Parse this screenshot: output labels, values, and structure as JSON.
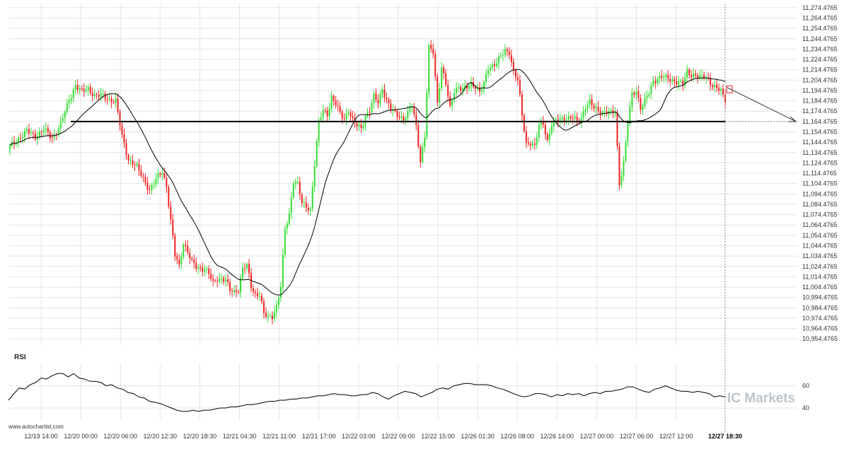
{
  "watermark": "www.autochartist.com",
  "brand": "IC Markets",
  "chart_data": [
    {
      "type": "candlestick",
      "ylim": [
        10948.4765,
        11278.4765
      ],
      "y_ticks": [
        10954.4765,
        10964.4765,
        10974.4765,
        10984.4765,
        10994.4765,
        11004.4765,
        11014.4765,
        11024.4765,
        11034.4765,
        11044.4765,
        11054.4765,
        11064.4765,
        11074.4765,
        11084.4765,
        11094.4765,
        11104.4765,
        11114.4765,
        11124.4765,
        11134.4765,
        11144.4765,
        11154.4765,
        11164.4765,
        11174.4765,
        11184.4765,
        11194.4765,
        11204.4765,
        11214.4765,
        11224.4765,
        11234.4765,
        11244.4765,
        11254.4765,
        11264.4765,
        11274.4765
      ],
      "y_tick_labels": [
        "10,954.4765",
        "10,964.4765",
        "10,974.4765",
        "10,984.4765",
        "10,994.4765",
        "11,004.4765",
        "11,014.4765",
        "11,024.4765",
        "11,034.4765",
        "11,044.4765",
        "11,054.4765",
        "11,064.4765",
        "11,074.4765",
        "11,084.4765",
        "11,094.4765",
        "11,104.4765",
        "11,114.4765",
        "11,124.4765",
        "11,134.4765",
        "11,144.4765",
        "11,154.4765",
        "11,164.4765",
        "11,174.4765",
        "11,184.4765",
        "11,194.4765",
        "11,204.4765",
        "11,214.4765",
        "11,224.4765",
        "11,234.4765",
        "11,244.4765",
        "11,254.4765",
        "11,264.4765",
        "11,274.4765"
      ],
      "x_tick_labels": [
        "12/19 14:00",
        "12/20 00:00",
        "12/20 06:00",
        "12/20 12:30",
        "12/20 18:30",
        "12/21 04:30",
        "12/21 11:00",
        "12/21 17:00",
        "12/22 03:00",
        "12/22 09:00",
        "12/22 15:00",
        "12/26 01:30",
        "12/26 08:00",
        "12/26 14:00",
        "12/27 00:00",
        "12/27 06:00",
        "12/27 12:00",
        "12/27 18:30"
      ],
      "current_x_label": "12/27 18:30",
      "support_level": 11164.4765,
      "projection_target": 11164.4765,
      "grid": true,
      "colors": {
        "up": "#33dd33",
        "down": "#ee2222",
        "line": "#000000",
        "grid": "#e4e4e4",
        "text": "#333333",
        "cursor": "#888888"
      },
      "close_path": [
        [
          0,
          11140
        ],
        [
          4,
          11148
        ],
        [
          8,
          11155
        ],
        [
          12,
          11150
        ],
        [
          16,
          11157
        ],
        [
          20,
          11148
        ],
        [
          24,
          11162
        ],
        [
          28,
          11185
        ],
        [
          31,
          11200
        ],
        [
          34,
          11193
        ],
        [
          37,
          11196
        ],
        [
          40,
          11190
        ],
        [
          44,
          11189
        ],
        [
          47,
          11186
        ],
        [
          50,
          11184
        ],
        [
          53,
          11150
        ],
        [
          56,
          11128
        ],
        [
          60,
          11120
        ],
        [
          63,
          11110
        ],
        [
          66,
          11098
        ],
        [
          69,
          11108
        ],
        [
          72,
          11117
        ],
        [
          74,
          11102
        ],
        [
          76,
          11068
        ],
        [
          78,
          11035
        ],
        [
          80,
          11025
        ],
        [
          82,
          11048
        ],
        [
          84,
          11038
        ],
        [
          86,
          11028
        ],
        [
          88,
          11024
        ],
        [
          90,
          11023
        ],
        [
          92,
          11022
        ],
        [
          94,
          11017
        ],
        [
          96,
          11008
        ],
        [
          98,
          11013
        ],
        [
          100,
          11013
        ],
        [
          102,
          11011
        ],
        [
          104,
          11001
        ],
        [
          106,
          11000
        ],
        [
          108,
          11003
        ],
        [
          110,
          11022
        ],
        [
          112,
          11025
        ],
        [
          114,
          11005
        ],
        [
          116,
          10998
        ],
        [
          118,
          10998
        ],
        [
          120,
          10978
        ],
        [
          122,
          10975
        ],
        [
          124,
          10977
        ],
        [
          126,
          10986
        ],
        [
          128,
          11005
        ],
        [
          130,
          11060
        ],
        [
          132,
          11075
        ],
        [
          134,
          11108
        ],
        [
          136,
          11104
        ],
        [
          138,
          11085
        ],
        [
          140,
          11082
        ],
        [
          142,
          11080
        ],
        [
          144,
          11124
        ],
        [
          146,
          11163
        ],
        [
          148,
          11175
        ],
        [
          150,
          11172
        ],
        [
          152,
          11188
        ],
        [
          154,
          11181
        ],
        [
          156,
          11172
        ],
        [
          158,
          11167
        ],
        [
          160,
          11176
        ],
        [
          162,
          11165
        ],
        [
          164,
          11160
        ],
        [
          166,
          11158
        ],
        [
          168,
          11170
        ],
        [
          170,
          11175
        ],
        [
          172,
          11188
        ],
        [
          174,
          11183
        ],
        [
          176,
          11197
        ],
        [
          178,
          11185
        ],
        [
          180,
          11176
        ],
        [
          182,
          11172
        ],
        [
          184,
          11170
        ],
        [
          186,
          11167
        ],
        [
          188,
          11172
        ],
        [
          190,
          11180
        ],
        [
          192,
          11160
        ],
        [
          194,
          11127
        ],
        [
          196,
          11150
        ],
        [
          198,
          11235
        ],
        [
          200,
          11232
        ],
        [
          202,
          11183
        ],
        [
          204,
          11217
        ],
        [
          206,
          11200
        ],
        [
          208,
          11177
        ],
        [
          210,
          11195
        ],
        [
          212,
          11198
        ],
        [
          214,
          11195
        ],
        [
          216,
          11197
        ],
        [
          218,
          11201
        ],
        [
          220,
          11199
        ],
        [
          222,
          11193
        ],
        [
          224,
          11200
        ],
        [
          226,
          11216
        ],
        [
          228,
          11219
        ],
        [
          230,
          11222
        ],
        [
          232,
          11227
        ],
        [
          234,
          11232
        ],
        [
          236,
          11232
        ],
        [
          238,
          11213
        ],
        [
          240,
          11204
        ],
        [
          242,
          11170
        ],
        [
          244,
          11143
        ],
        [
          246,
          11145
        ],
        [
          248,
          11140
        ],
        [
          250,
          11160
        ],
        [
          252,
          11163
        ],
        [
          254,
          11146
        ],
        [
          256,
          11162
        ],
        [
          258,
          11164
        ],
        [
          260,
          11166
        ],
        [
          262,
          11168
        ],
        [
          264,
          11168
        ],
        [
          266,
          11168
        ],
        [
          268,
          11164
        ],
        [
          270,
          11168
        ],
        [
          272,
          11180
        ],
        [
          274,
          11183
        ],
        [
          276,
          11177
        ],
        [
          278,
          11175
        ],
        [
          280,
          11174
        ],
        [
          282,
          11174
        ],
        [
          284,
          11172
        ],
        [
          286,
          11174
        ],
        [
          288,
          11105
        ],
        [
          290,
          11125
        ],
        [
          292,
          11163
        ],
        [
          294,
          11190
        ],
        [
          296,
          11195
        ],
        [
          298,
          11178
        ],
        [
          300,
          11184
        ],
        [
          302,
          11192
        ],
        [
          304,
          11203
        ],
        [
          306,
          11207
        ],
        [
          308,
          11208
        ],
        [
          310,
          11206
        ],
        [
          312,
          11205
        ],
        [
          314,
          11204
        ],
        [
          316,
          11203
        ],
        [
          318,
          11200
        ],
        [
          320,
          11212
        ],
        [
          322,
          11210
        ],
        [
          324,
          11210
        ],
        [
          326,
          11207
        ],
        [
          328,
          11207
        ],
        [
          330,
          11205
        ],
        [
          332,
          11200
        ],
        [
          334,
          11197
        ],
        [
          336,
          11193
        ],
        [
          338,
          11185
        ]
      ]
    },
    {
      "type": "line",
      "title": "RSI",
      "ylim": [
        33,
        75
      ],
      "y_ticks": [
        40,
        60
      ],
      "y_tick_labels": [
        "40",
        "60"
      ],
      "series": [
        {
          "values": [
            47,
            53,
            58,
            57,
            61,
            63,
            67,
            66,
            69,
            71,
            71,
            68,
            71,
            67,
            66,
            64,
            64,
            63,
            60,
            61,
            58,
            57,
            54,
            53,
            50,
            49,
            46,
            45,
            44,
            42,
            40,
            38,
            37,
            37,
            38,
            37,
            38,
            38,
            39,
            40,
            40,
            41,
            41,
            42,
            43,
            43,
            44,
            45,
            46,
            46,
            47,
            47,
            48,
            48,
            49,
            49,
            50,
            51,
            51,
            52,
            53,
            52,
            52,
            51,
            51,
            52,
            52,
            54,
            53,
            50,
            48,
            51,
            53,
            55,
            54,
            53,
            50,
            52,
            54,
            57,
            58,
            57,
            60,
            61,
            62,
            62,
            61,
            61,
            61,
            60,
            58,
            57,
            55,
            53,
            51,
            50,
            51,
            53,
            53,
            52,
            50,
            52,
            51,
            53,
            52,
            53,
            51,
            53,
            54,
            53,
            55,
            55,
            56,
            57,
            59,
            59,
            57,
            55,
            54,
            57,
            58,
            60,
            58,
            56,
            55,
            55,
            54,
            55,
            54,
            53,
            50,
            51,
            50
          ]
        }
      ]
    }
  ]
}
